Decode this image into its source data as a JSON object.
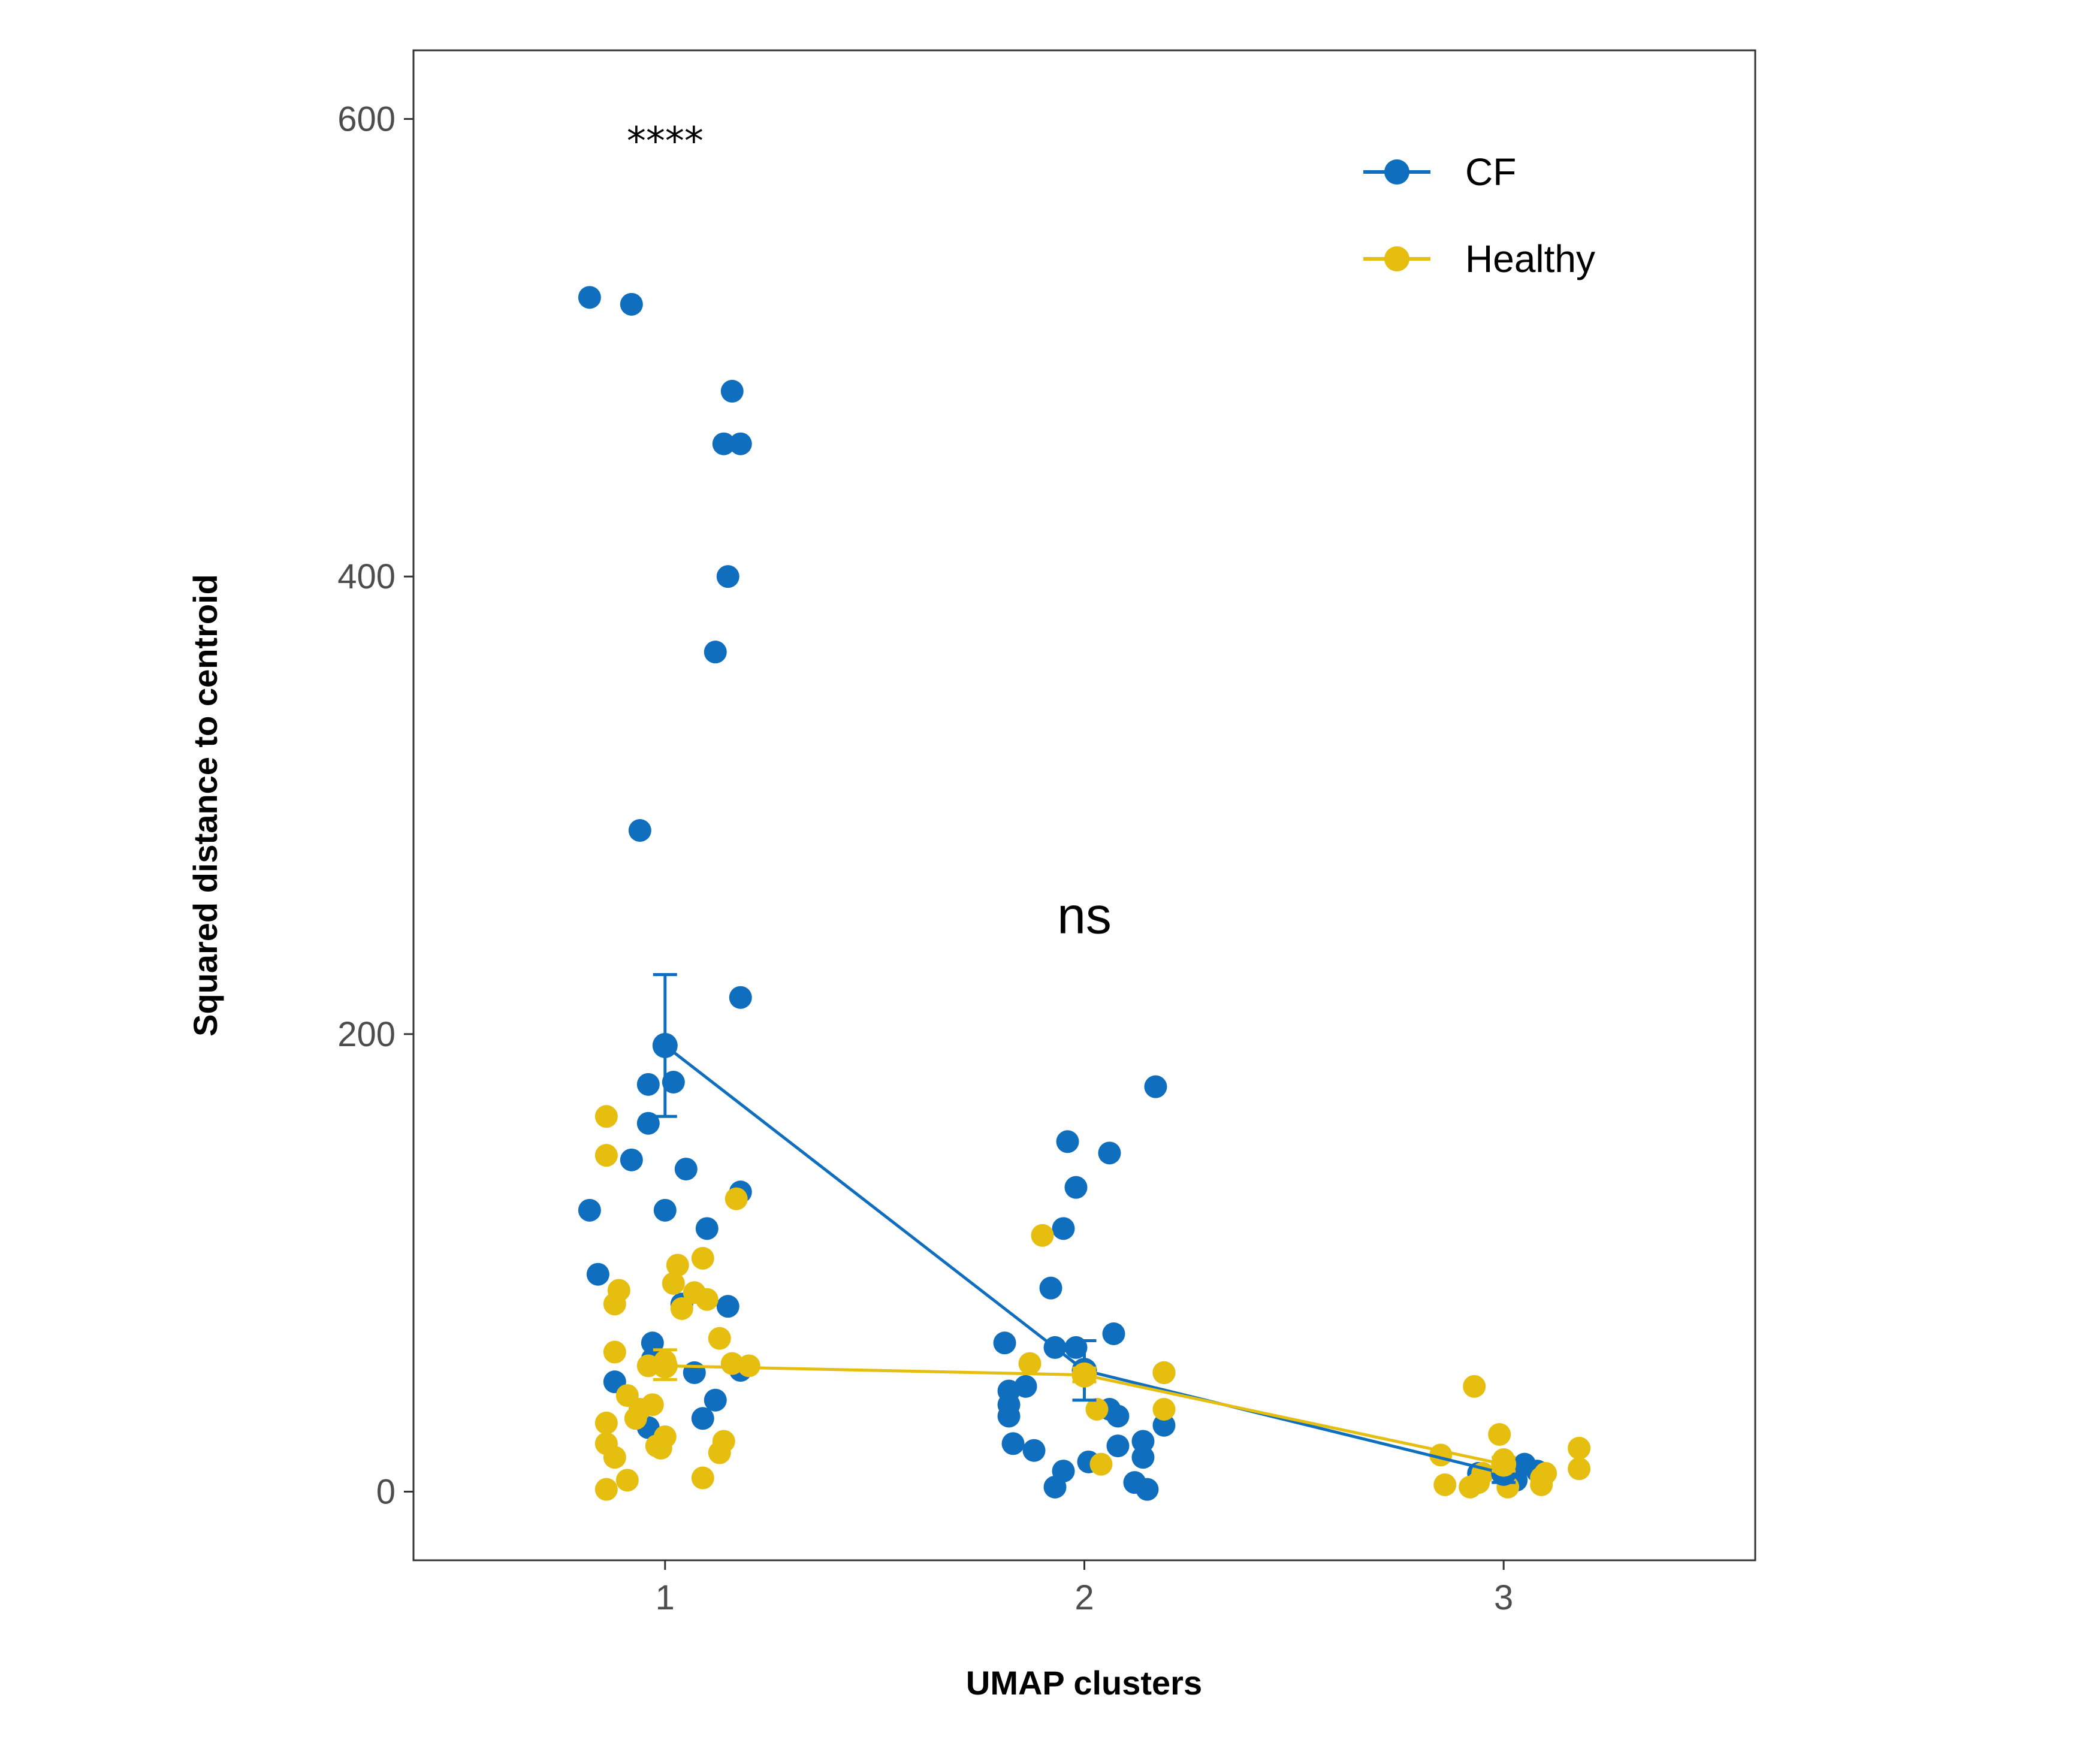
{
  "chart_data": {
    "type": "scatter",
    "title": "",
    "xlabel": "UMAP clusters",
    "ylabel": "Squared distance to centroid",
    "categories": [
      "1",
      "2",
      "3"
    ],
    "xlim": [
      0.4,
      3.6
    ],
    "ylim": [
      -30,
      630
    ],
    "yticks": [
      0,
      200,
      400,
      600
    ],
    "grid": false,
    "legend_position": "top-right",
    "colors": {
      "CF": "#0f6ebe",
      "Healthy": "#e6be0f"
    },
    "series": [
      {
        "name": "CF",
        "color": "#0f6ebe",
        "means": [
          195,
          53,
          8
        ],
        "errors": [
          [
            164,
            226
          ],
          [
            40,
            66
          ],
          [
            4,
            12
          ]
        ],
        "points": [
          [
            0.82,
            522
          ],
          [
            0.92,
            519
          ],
          [
            1.16,
            481
          ],
          [
            1.14,
            458
          ],
          [
            1.18,
            458
          ],
          [
            1.15,
            400
          ],
          [
            1.12,
            367
          ],
          [
            0.94,
            289
          ],
          [
            1.18,
            216
          ],
          [
            0.96,
            178
          ],
          [
            1.02,
            179
          ],
          [
            0.96,
            161
          ],
          [
            0.92,
            145
          ],
          [
            1.05,
            141
          ],
          [
            1.18,
            131
          ],
          [
            0.82,
            123
          ],
          [
            1.0,
            123
          ],
          [
            1.1,
            115
          ],
          [
            0.84,
            95
          ],
          [
            1.04,
            82
          ],
          [
            1.15,
            81
          ],
          [
            0.97,
            65
          ],
          [
            0.97,
            58
          ],
          [
            1.07,
            52
          ],
          [
            1.18,
            53
          ],
          [
            0.88,
            48
          ],
          [
            1.12,
            40
          ],
          [
            0.96,
            28
          ],
          [
            1.09,
            32
          ],
          [
            1.81,
            65
          ],
          [
            1.93,
            63
          ],
          [
            1.98,
            63
          ],
          [
            1.82,
            44
          ],
          [
            1.82,
            38
          ],
          [
            1.82,
            33
          ],
          [
            1.86,
            46
          ],
          [
            2.07,
            69
          ],
          [
            2.06,
            36
          ],
          [
            2.08,
            33
          ],
          [
            2.19,
            52
          ],
          [
            2.19,
            29
          ],
          [
            1.96,
            153
          ],
          [
            2.06,
            148
          ],
          [
            1.98,
            133
          ],
          [
            2.17,
            177
          ],
          [
            1.95,
            115
          ],
          [
            1.92,
            89
          ],
          [
            1.83,
            21
          ],
          [
            1.88,
            18
          ],
          [
            1.95,
            9
          ],
          [
            2.01,
            13
          ],
          [
            1.93,
            2
          ],
          [
            2.08,
            20
          ],
          [
            2.12,
            4
          ],
          [
            2.14,
            15
          ],
          [
            2.15,
            1
          ],
          [
            2.14,
            22
          ],
          [
            2.94,
            8
          ],
          [
            3.02,
            6
          ],
          [
            3.0,
            10
          ],
          [
            3.05,
            12
          ],
          [
            3.03,
            5
          ],
          [
            3.08,
            9
          ]
        ]
      },
      {
        "name": "Healthy",
        "color": "#e6be0f",
        "means": [
          55,
          51,
          12
        ],
        "errors": [
          [
            49,
            62
          ],
          [
            48,
            54
          ],
          [
            9,
            15
          ]
        ],
        "points": [
          [
            0.86,
            164
          ],
          [
            0.86,
            147
          ],
          [
            1.17,
            128
          ],
          [
            1.09,
            102
          ],
          [
            1.03,
            99
          ],
          [
            1.02,
            91
          ],
          [
            0.89,
            88
          ],
          [
            1.07,
            87
          ],
          [
            1.1,
            84
          ],
          [
            0.88,
            82
          ],
          [
            1.04,
            80
          ],
          [
            1.13,
            67
          ],
          [
            0.88,
            61
          ],
          [
            0.96,
            55
          ],
          [
            1.0,
            57
          ],
          [
            1.16,
            56
          ],
          [
            1.2,
            55
          ],
          [
            0.91,
            42
          ],
          [
            0.94,
            36
          ],
          [
            0.93,
            32
          ],
          [
            0.97,
            38
          ],
          [
            0.86,
            30
          ],
          [
            1.0,
            24
          ],
          [
            1.14,
            22
          ],
          [
            0.86,
            21
          ],
          [
            0.98,
            20
          ],
          [
            0.99,
            19
          ],
          [
            1.13,
            17
          ],
          [
            0.88,
            15
          ],
          [
            0.91,
            5
          ],
          [
            1.09,
            6
          ],
          [
            0.86,
            1
          ],
          [
            1.9,
            112
          ],
          [
            1.87,
            56
          ],
          [
            2.19,
            52
          ],
          [
            2.03,
            36
          ],
          [
            2.19,
            36
          ],
          [
            2.04,
            12
          ],
          [
            2.93,
            46
          ],
          [
            2.99,
            25
          ],
          [
            3.0,
            14
          ],
          [
            2.95,
            8
          ],
          [
            3.09,
            6
          ],
          [
            2.85,
            16
          ],
          [
            2.86,
            3
          ],
          [
            2.92,
            2
          ],
          [
            2.94,
            4
          ],
          [
            3.18,
            19
          ],
          [
            3.18,
            10
          ],
          [
            3.1,
            8
          ],
          [
            3.09,
            3
          ],
          [
            3.01,
            2
          ]
        ]
      }
    ],
    "annotations": [
      {
        "text": "****",
        "x": 1,
        "y": 595
      },
      {
        "text": "ns",
        "x": 2,
        "y": 252
      }
    ]
  }
}
